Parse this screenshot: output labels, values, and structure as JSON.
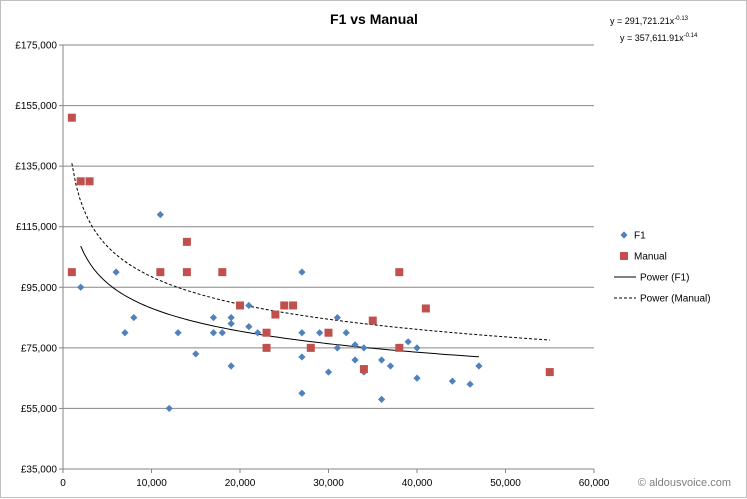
{
  "chart_data": {
    "type": "scatter",
    "title": "F1 vs Manual",
    "xlabel": "",
    "ylabel": "",
    "xlim": [
      0,
      60000
    ],
    "ylim": [
      35000,
      175000
    ],
    "x_ticks": [
      0,
      10000,
      20000,
      30000,
      40000,
      50000,
      60000
    ],
    "x_tick_labels": [
      "0",
      "10,000",
      "20,000",
      "30,000",
      "40,000",
      "50,000",
      "60,000"
    ],
    "y_ticks": [
      35000,
      55000,
      75000,
      95000,
      115000,
      135000,
      155000,
      175000
    ],
    "y_tick_labels": [
      "£35,000",
      "£55,000",
      "£75,000",
      "£95,000",
      "£115,000",
      "£135,000",
      "£155,000",
      "£175,000"
    ],
    "grid": "horizontal",
    "legend_position": "right",
    "series": [
      {
        "name": "F1",
        "marker": "diamond",
        "color": "#4f81bd",
        "points": [
          [
            2000,
            95000
          ],
          [
            6000,
            100000
          ],
          [
            7000,
            80000
          ],
          [
            8000,
            85000
          ],
          [
            11000,
            119000
          ],
          [
            12000,
            55000
          ],
          [
            13000,
            80000
          ],
          [
            15000,
            73000
          ],
          [
            17000,
            85000
          ],
          [
            17000,
            80000
          ],
          [
            18000,
            80000
          ],
          [
            19000,
            85000
          ],
          [
            19000,
            83000
          ],
          [
            19000,
            69000
          ],
          [
            21000,
            89000
          ],
          [
            21000,
            82000
          ],
          [
            22000,
            80000
          ],
          [
            24000,
            86000
          ],
          [
            27000,
            100000
          ],
          [
            27000,
            80000
          ],
          [
            27000,
            72000
          ],
          [
            27000,
            60000
          ],
          [
            29000,
            80000
          ],
          [
            30000,
            67000
          ],
          [
            31000,
            85000
          ],
          [
            31000,
            75000
          ],
          [
            32000,
            80000
          ],
          [
            33000,
            76000
          ],
          [
            33000,
            71000
          ],
          [
            34000,
            75000
          ],
          [
            34000,
            67000
          ],
          [
            36000,
            71000
          ],
          [
            36000,
            58000
          ],
          [
            37000,
            69000
          ],
          [
            39000,
            77000
          ],
          [
            40000,
            75000
          ],
          [
            40000,
            65000
          ],
          [
            44000,
            64000
          ],
          [
            46000,
            63000
          ],
          [
            47000,
            69000
          ]
        ]
      },
      {
        "name": "Manual",
        "marker": "square",
        "color": "#c0504d",
        "points": [
          [
            1000,
            151000
          ],
          [
            1000,
            100000
          ],
          [
            2000,
            130000
          ],
          [
            3000,
            130000
          ],
          [
            11000,
            100000
          ],
          [
            14000,
            110000
          ],
          [
            14000,
            100000
          ],
          [
            18000,
            100000
          ],
          [
            20000,
            89000
          ],
          [
            23000,
            80000
          ],
          [
            23000,
            75000
          ],
          [
            24000,
            86000
          ],
          [
            25000,
            89000
          ],
          [
            26000,
            89000
          ],
          [
            28000,
            75000
          ],
          [
            30000,
            80000
          ],
          [
            34000,
            68000
          ],
          [
            35000,
            84000
          ],
          [
            38000,
            100000
          ],
          [
            38000,
            75000
          ],
          [
            41000,
            88000
          ],
          [
            55000,
            67000
          ]
        ]
      }
    ],
    "trendlines": [
      {
        "name": "Power (F1)",
        "a": 291721.21,
        "b": -0.13,
        "x_range": [
          2000,
          47000
        ],
        "style": "solid",
        "color": "#000000"
      },
      {
        "name": "Power (Manual)",
        "a": 357611.91,
        "b": -0.14,
        "x_range": [
          1000,
          55000
        ],
        "style": "dashed",
        "color": "#000000"
      }
    ],
    "equations": [
      {
        "base": "y = 291,721.21x",
        "exponent": "-0.13"
      },
      {
        "base": "y = 357,611.91x",
        "exponent": "-0.14"
      }
    ],
    "legend": [
      "F1",
      "Manual",
      "Power (F1)",
      "Power (Manual)"
    ]
  },
  "watermark": "© aldousvoice.com"
}
